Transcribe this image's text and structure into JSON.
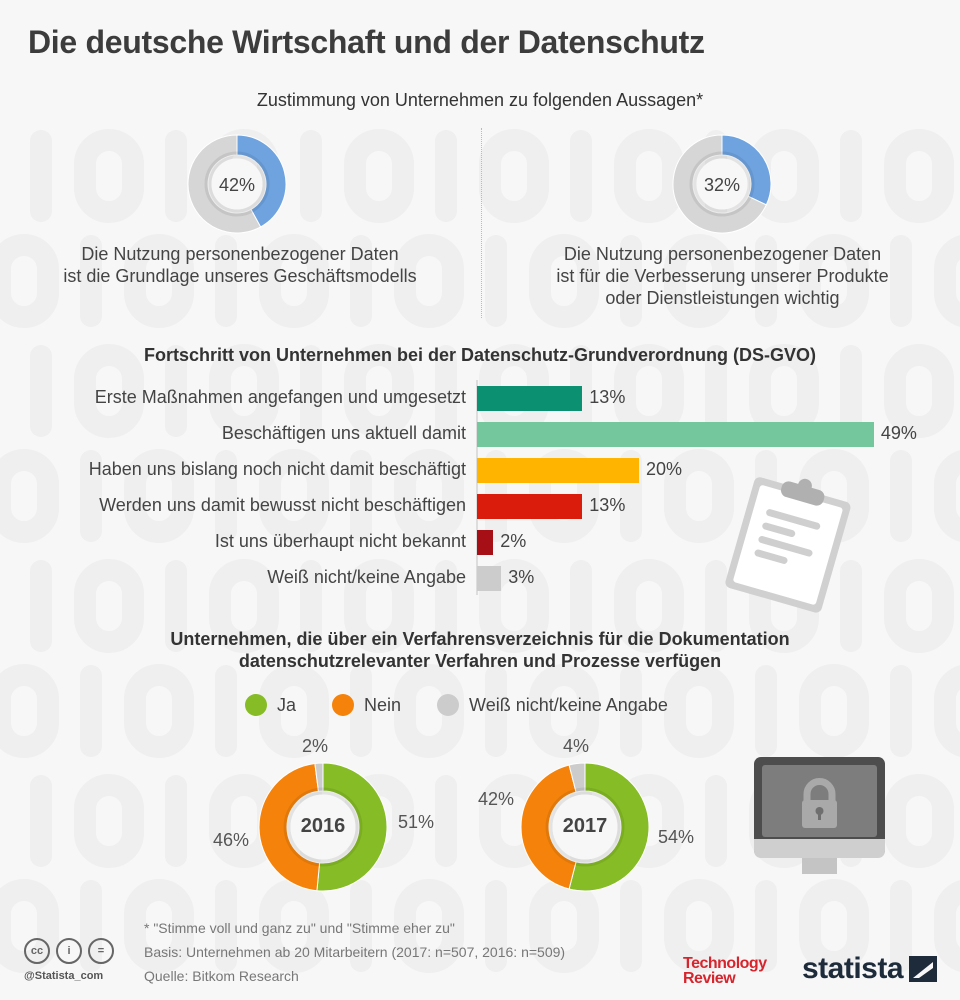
{
  "title": "Die deutsche Wirtschaft und der Datenschutz",
  "section1": {
    "subtitle": "Zustimmung von Unternehmen zu folgenden Aussagen*",
    "items": [
      {
        "value_label": "42%",
        "value": 42,
        "line1": "Die Nutzung personenbezogener Daten",
        "line2": "ist die Grundlage unseres Geschäftsmodells",
        "line3": ""
      },
      {
        "value_label": "32%",
        "value": 32,
        "line1": "Die Nutzung personenbezogener Daten",
        "line2": "ist für die Verbesserung unserer Produkte",
        "line3": "oder Dienstleistungen wichtig"
      }
    ],
    "colors": {
      "fill": "#6ea3e0",
      "track": "#d6d6d6"
    }
  },
  "section2": {
    "subtitle": "Fortschritt von Unternehmen bei der Datenschutz-Grundverordnung (DS-GVO)",
    "icon": "clipboard-icon"
  },
  "section3": {
    "subtitle_line1": "Unternehmen, die über ein Verfahrensverzeichnis für die Dokumentation",
    "subtitle_line2": "datenschutzrelevanter Verfahren und Prozesse verfügen",
    "legend": [
      {
        "label": "Ja",
        "color": "#86bc25"
      },
      {
        "label": "Nein",
        "color": "#f5830b"
      },
      {
        "label": "Weiß nicht/keine Angabe",
        "color": "#cccccc"
      }
    ],
    "icon": "locked-monitor-icon"
  },
  "chart_data": [
    {
      "type": "pie",
      "title": "Zustimmung von Unternehmen zu folgenden Aussagen*",
      "series": [
        {
          "name": "Die Nutzung personenbezogener Daten ist die Grundlage unseres Geschäftsmodells",
          "values": [
            42
          ]
        },
        {
          "name": "Die Nutzung personenbezogener Daten ist für die Verbesserung unserer Produkte oder Dienstleistungen wichtig",
          "values": [
            32
          ]
        }
      ],
      "unit": "%"
    },
    {
      "type": "bar",
      "orientation": "horizontal",
      "title": "Fortschritt von Unternehmen bei der Datenschutz-Grundverordnung (DS-GVO)",
      "categories": [
        "Erste Maßnahmen angefangen und umgesetzt",
        "Beschäftigen uns aktuell damit",
        "Haben uns bislang noch nicht damit beschäftigt",
        "Werden uns damit bewusst nicht beschäftigen",
        "Ist uns überhaupt nicht bekannt",
        "Weiß nicht/keine Angabe"
      ],
      "values": [
        13,
        49,
        20,
        13,
        2,
        3
      ],
      "value_labels": [
        "13%",
        "49%",
        "20%",
        "13%",
        "2%",
        "3%"
      ],
      "colors": [
        "#0b9172",
        "#74c69d",
        "#ffb400",
        "#d91c0b",
        "#a50f15",
        "#cccccc"
      ],
      "xlim": [
        0,
        55
      ],
      "grid": false
    },
    {
      "type": "pie",
      "title": "Unternehmen, die über ein Verfahrensverzeichnis für die Dokumentation datenschutzrelevanter Verfahren und Prozesse verfügen",
      "categories": [
        "Ja",
        "Nein",
        "Weiß nicht/keine Angabe"
      ],
      "series": [
        {
          "name": "2016",
          "values": [
            51,
            46,
            2
          ],
          "value_labels": [
            "51%",
            "46%",
            "2%"
          ]
        },
        {
          "name": "2017",
          "values": [
            54,
            42,
            4
          ],
          "value_labels": [
            "54%",
            "42%",
            "4%"
          ]
        }
      ],
      "legend": "top-center"
    }
  ],
  "footer": {
    "note": "* \"Stimme voll und ganz zu\" und \"Stimme eher zu\"",
    "basis": "Basis: Unternehmen ab 20 Mitarbeitern (2017: n=507, 2016: n=509)",
    "source": "Quelle: Bitkom Research",
    "handle": "@Statista_com",
    "cc_icons": [
      "cc",
      "i",
      "="
    ],
    "tr_line1": "Technology",
    "tr_line2": "Review",
    "statista": "statista"
  }
}
